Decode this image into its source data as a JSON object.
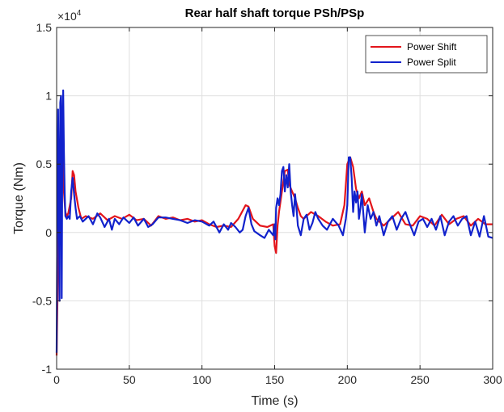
{
  "chart_data": {
    "type": "line",
    "title": "Rear half shaft torque PSh/PSp",
    "xlabel": "Time (s)",
    "ylabel": "Torque (Nm)",
    "y_exponent_label": "×10",
    "y_exponent_power": "4",
    "xlim": [
      0,
      300
    ],
    "ylim": [
      -1,
      1.5
    ],
    "y_scale_factor": 10000,
    "x_ticks": [
      0,
      50,
      100,
      150,
      200,
      250,
      300
    ],
    "y_ticks": [
      -1,
      -0.5,
      0,
      0.5,
      1,
      1.5
    ],
    "y_tick_labels": [
      "-1",
      "-0.5",
      "0",
      "0.5",
      "1",
      "1.5"
    ],
    "grid": true,
    "legend_position": "top-right",
    "series": [
      {
        "name": "Power Shift",
        "color": "#e3151b",
        "x": [
          0,
          1,
          2,
          3,
          4,
          5,
          6,
          7,
          8,
          10,
          11,
          12,
          13,
          15,
          17,
          20,
          25,
          30,
          35,
          40,
          45,
          50,
          55,
          60,
          65,
          70,
          75,
          80,
          85,
          90,
          95,
          100,
          105,
          110,
          115,
          120,
          125,
          130,
          132,
          135,
          140,
          145,
          149,
          150,
          151,
          152,
          153,
          155,
          157,
          159,
          160,
          162,
          164,
          166,
          168,
          170,
          175,
          180,
          185,
          190,
          195,
          198,
          200,
          202,
          204,
          206,
          208,
          210,
          212,
          215,
          218,
          220,
          225,
          230,
          235,
          240,
          245,
          250,
          255,
          260,
          265,
          270,
          275,
          280,
          285,
          290,
          295,
          300
        ],
        "values": [
          -0.9,
          -0.2,
          0.4,
          0.7,
          0.55,
          0.3,
          0.15,
          0.12,
          0.14,
          0.25,
          0.45,
          0.42,
          0.3,
          0.18,
          0.1,
          0.12,
          0.1,
          0.14,
          0.09,
          0.12,
          0.1,
          0.13,
          0.09,
          0.1,
          0.05,
          0.12,
          0.1,
          0.11,
          0.09,
          0.1,
          0.08,
          0.09,
          0.06,
          0.04,
          0.05,
          0.04,
          0.1,
          0.2,
          0.19,
          0.1,
          0.05,
          0.04,
          0.06,
          -0.1,
          -0.15,
          0.05,
          0.15,
          0.3,
          0.45,
          0.46,
          0.35,
          0.3,
          0.25,
          0.18,
          0.12,
          0.1,
          0.15,
          0.12,
          0.08,
          0.05,
          0.06,
          0.2,
          0.5,
          0.55,
          0.48,
          0.32,
          0.25,
          0.3,
          0.2,
          0.25,
          0.15,
          0.1,
          0.05,
          0.1,
          0.15,
          0.06,
          0.05,
          0.12,
          0.1,
          0.05,
          0.13,
          0.06,
          0.1,
          0.12,
          0.05,
          0.1,
          0.06,
          0.06
        ]
      },
      {
        "name": "Power Split",
        "color": "#1122cc",
        "x": [
          0,
          0.5,
          1,
          1.5,
          2,
          2.5,
          3,
          3.5,
          4,
          4.5,
          5,
          5.5,
          6,
          7,
          8,
          9,
          10,
          11,
          12,
          13,
          14,
          16,
          18,
          20,
          22,
          25,
          28,
          30,
          33,
          36,
          38,
          40,
          43,
          46,
          50,
          53,
          56,
          60,
          63,
          66,
          70,
          75,
          80,
          85,
          90,
          95,
          100,
          105,
          108,
          112,
          115,
          118,
          120,
          123,
          126,
          128,
          130,
          132,
          134,
          136,
          140,
          143,
          146,
          149,
          150,
          150.5,
          151,
          152,
          153,
          154,
          155,
          156,
          157,
          158,
          159,
          160,
          161,
          162,
          163,
          164,
          165,
          166,
          168,
          170,
          172,
          174,
          176,
          178,
          180,
          183,
          186,
          190,
          194,
          197,
          199,
          200,
          201,
          202,
          203,
          204,
          205,
          206,
          207,
          208,
          209,
          210,
          212,
          214,
          216,
          218,
          220,
          222,
          225,
          228,
          231,
          234,
          237,
          240,
          243,
          246,
          249,
          252,
          255,
          258,
          261,
          264,
          267,
          270,
          273,
          276,
          279,
          282,
          285,
          288,
          291,
          294,
          297,
          300
        ],
        "values": [
          -0.88,
          0.2,
          0.9,
          0.3,
          -0.5,
          0.95,
          1.0,
          -0.48,
          0.8,
          1.04,
          0.6,
          0.3,
          0.12,
          0.1,
          0.12,
          0.1,
          0.3,
          0.4,
          0.28,
          0.18,
          0.1,
          0.12,
          0.08,
          0.1,
          0.12,
          0.06,
          0.14,
          0.11,
          0.04,
          0.1,
          0.02,
          0.1,
          0.06,
          0.11,
          0.07,
          0.11,
          0.05,
          0.1,
          0.04,
          0.06,
          0.11,
          0.11,
          0.1,
          0.09,
          0.07,
          0.09,
          0.08,
          0.05,
          0.08,
          0.0,
          0.06,
          0.02,
          0.07,
          0.04,
          0.0,
          0.02,
          0.12,
          0.18,
          0.06,
          0.01,
          -0.02,
          -0.04,
          0.02,
          -0.02,
          0.06,
          -0.05,
          0.18,
          0.25,
          0.2,
          0.28,
          0.45,
          0.48,
          0.3,
          0.42,
          0.33,
          0.5,
          0.3,
          0.2,
          0.12,
          0.28,
          0.18,
          0.05,
          -0.02,
          0.1,
          0.13,
          0.02,
          0.07,
          0.15,
          0.1,
          0.05,
          0.02,
          0.1,
          0.05,
          -0.02,
          0.1,
          0.2,
          0.55,
          0.55,
          0.4,
          0.15,
          0.3,
          0.22,
          0.3,
          0.1,
          0.18,
          0.28,
          0.0,
          0.2,
          0.1,
          0.15,
          0.05,
          0.12,
          -0.02,
          0.08,
          0.12,
          0.02,
          0.1,
          0.15,
          0.06,
          -0.02,
          0.08,
          0.1,
          0.04,
          0.1,
          0.02,
          0.12,
          -0.02,
          0.08,
          0.12,
          0.05,
          0.1,
          0.12,
          -0.02,
          0.08,
          -0.03,
          0.12,
          -0.03,
          -0.04
        ]
      }
    ]
  }
}
